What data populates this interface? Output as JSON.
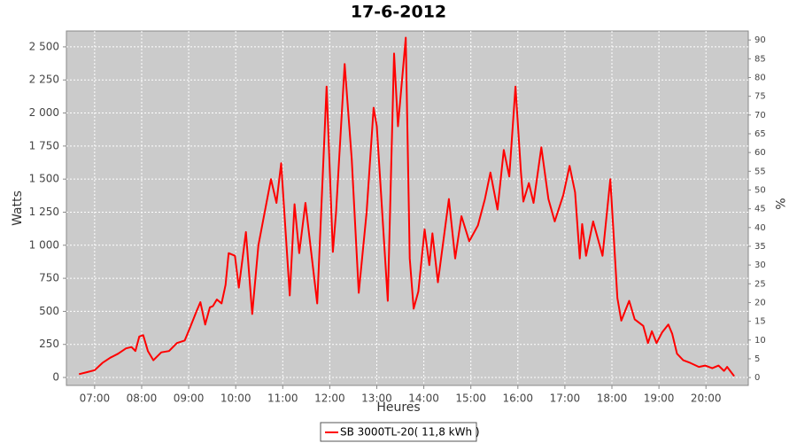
{
  "chart_data": {
    "type": "line",
    "title": "17-6-2012",
    "x_label": "Heures",
    "y_label": "Watts",
    "y2_label": "%",
    "x": [
      "06:40",
      "06:50",
      "07:00",
      "07:10",
      "07:20",
      "07:30",
      "07:40",
      "07:47",
      "07:52",
      "07:57",
      "08:02",
      "08:08",
      "08:15",
      "08:25",
      "08:35",
      "08:45",
      "08:55",
      "09:02",
      "09:10",
      "09:15",
      "09:21",
      "09:27",
      "09:31",
      "09:36",
      "09:42",
      "09:47",
      "09:51",
      "09:59",
      "10:04",
      "10:13",
      "10:21",
      "10:29",
      "10:45",
      "10:52",
      "10:58",
      "11:09",
      "11:15",
      "11:21",
      "11:29",
      "11:44",
      "11:56",
      "12:04",
      "12:08",
      "12:19",
      "12:28",
      "12:37",
      "12:47",
      "12:56",
      "13:00",
      "13:14",
      "13:22",
      "13:27",
      "13:37",
      "13:42",
      "13:47",
      "13:53",
      "14:01",
      "14:07",
      "14:11",
      "14:18",
      "14:32",
      "14:40",
      "14:48",
      "14:58",
      "15:09",
      "15:18",
      "15:25",
      "15:34",
      "15:42",
      "15:49",
      "15:57",
      "16:04",
      "16:07",
      "16:14",
      "16:20",
      "16:30",
      "16:39",
      "16:47",
      "16:58",
      "17:06",
      "17:13",
      "17:19",
      "17:22",
      "17:27",
      "17:36",
      "17:48",
      "17:58",
      "18:07",
      "18:12",
      "18:22",
      "18:29",
      "18:40",
      "18:46",
      "18:51",
      "18:57",
      "19:04",
      "19:12",
      "19:17",
      "19:23",
      "19:31",
      "19:40",
      "19:51",
      "19:59",
      "20:08",
      "20:16",
      "20:23",
      "20:27",
      "20:36"
    ],
    "series": [
      {
        "name": "SB 3000TL-20( 11,8 kWh )",
        "color": "#ff0000",
        "values": [
          25,
          40,
          55,
          110,
          150,
          180,
          220,
          230,
          200,
          310,
          320,
          200,
          130,
          190,
          200,
          260,
          280,
          380,
          500,
          570,
          400,
          530,
          540,
          590,
          560,
          700,
          940,
          920,
          680,
          1100,
          480,
          1000,
          1500,
          1320,
          1620,
          620,
          1310,
          940,
          1320,
          560,
          2200,
          950,
          1250,
          2370,
          1650,
          640,
          1250,
          2040,
          1900,
          580,
          2450,
          1900,
          2570,
          900,
          520,
          650,
          1120,
          850,
          1090,
          720,
          1350,
          900,
          1220,
          1030,
          1150,
          1350,
          1550,
          1270,
          1720,
          1520,
          2200,
          1550,
          1330,
          1470,
          1320,
          1740,
          1350,
          1180,
          1380,
          1600,
          1400,
          900,
          1160,
          920,
          1180,
          920,
          1500,
          600,
          430,
          580,
          440,
          390,
          260,
          350,
          260,
          340,
          400,
          330,
          180,
          130,
          110,
          80,
          90,
          70,
          90,
          50,
          80,
          10
        ]
      }
    ],
    "xlim": [
      "06:24",
      "20:54"
    ],
    "xticks": [
      "07:00",
      "08:00",
      "09:00",
      "10:00",
      "11:00",
      "12:00",
      "13:00",
      "14:00",
      "15:00",
      "16:00",
      "17:00",
      "18:00",
      "19:00",
      "20:00"
    ],
    "ylim": [
      -60,
      2620
    ],
    "yticks": [
      0,
      250,
      500,
      750,
      {
        "value": 1000,
        "label": "1 000"
      },
      {
        "value": 1250,
        "label": "1 250"
      },
      {
        "value": 1500,
        "label": "1 500"
      },
      {
        "value": 1750,
        "label": "1 750"
      },
      {
        "value": 2000,
        "label": "2 000"
      },
      {
        "value": 2250,
        "label": "2 250"
      },
      {
        "value": 2500,
        "label": "2 500"
      }
    ],
    "y2lim": [
      -2.1,
      92.4
    ],
    "y2ticks": [
      0,
      5,
      10,
      15,
      20,
      25,
      30,
      35,
      40,
      45,
      50,
      55,
      60,
      65,
      70,
      75,
      80,
      85,
      90
    ],
    "grid": true,
    "legend": "bottom"
  }
}
